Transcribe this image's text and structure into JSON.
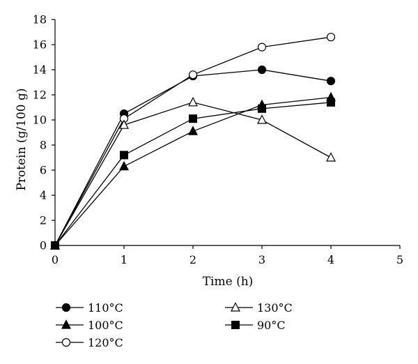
{
  "chart_data": {
    "type": "line",
    "title": "",
    "xlabel": "Time (h)",
    "ylabel": "Protein (g/100 g)",
    "xlim": [
      0,
      5
    ],
    "ylim": [
      0,
      18
    ],
    "xticks": [
      0,
      1,
      2,
      3,
      4,
      5
    ],
    "yticks": [
      0,
      2,
      4,
      6,
      8,
      10,
      12,
      14,
      16,
      18
    ],
    "grid": false,
    "legend_position": "bottom",
    "series": [
      {
        "name": "110°C",
        "marker": "circle-filled",
        "x": [
          0,
          1,
          2,
          3,
          4
        ],
        "values": [
          0,
          10.5,
          13.5,
          14.0,
          13.1
        ]
      },
      {
        "name": "100°C",
        "marker": "triangle-filled",
        "x": [
          0,
          1,
          2,
          3,
          4
        ],
        "values": [
          0,
          6.3,
          9.1,
          11.2,
          11.8
        ]
      },
      {
        "name": "120°C",
        "marker": "circle-open",
        "x": [
          0,
          1,
          2,
          3,
          4
        ],
        "values": [
          0,
          10.1,
          13.6,
          15.8,
          16.6
        ]
      },
      {
        "name": "130°C",
        "marker": "triangle-open",
        "x": [
          0,
          1,
          2,
          3,
          4
        ],
        "values": [
          0,
          9.6,
          11.4,
          10.0,
          7.0
        ]
      },
      {
        "name": "90°C",
        "marker": "square-filled",
        "x": [
          0,
          1,
          2,
          3,
          4
        ],
        "values": [
          0,
          7.2,
          10.1,
          10.9,
          11.4
        ]
      }
    ]
  }
}
